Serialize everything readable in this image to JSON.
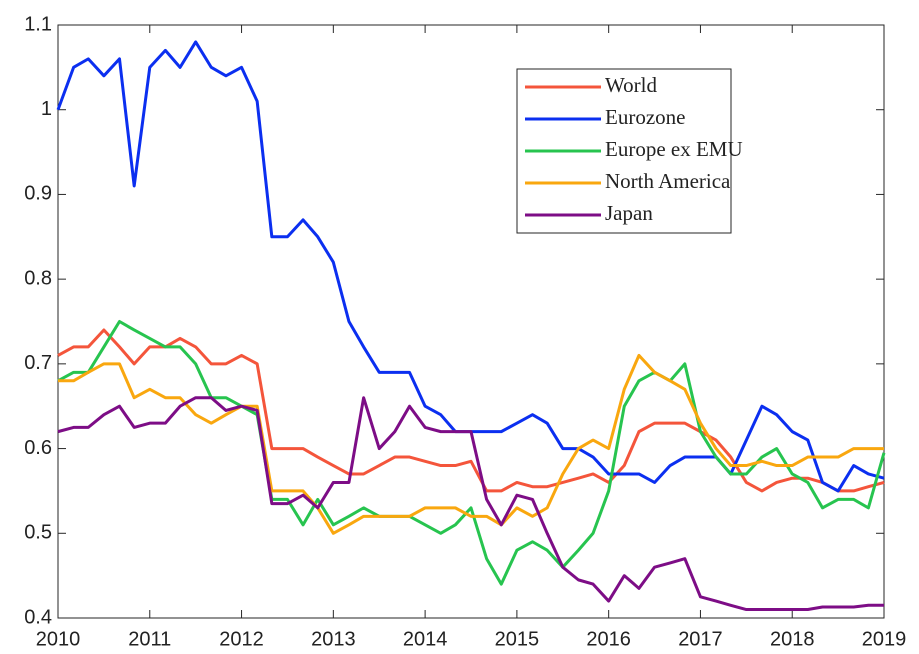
{
  "chart_data": {
    "type": "line",
    "x": [
      2010,
      2010.17,
      2010.33,
      2010.5,
      2010.67,
      2010.83,
      2011,
      2011.17,
      2011.33,
      2011.5,
      2011.67,
      2011.83,
      2012,
      2012.17,
      2012.33,
      2012.5,
      2012.67,
      2012.83,
      2013,
      2013.17,
      2013.33,
      2013.5,
      2013.67,
      2013.83,
      2014,
      2014.17,
      2014.33,
      2014.5,
      2014.67,
      2014.83,
      2015,
      2015.17,
      2015.33,
      2015.5,
      2015.67,
      2015.83,
      2016,
      2016.17,
      2016.33,
      2016.5,
      2016.67,
      2016.83,
      2017,
      2017.17,
      2017.33,
      2017.5,
      2017.67,
      2017.83,
      2018,
      2018.17,
      2018.33,
      2018.5,
      2018.67,
      2018.83,
      2019
    ],
    "series": [
      {
        "name": "World",
        "color": "#f4553b",
        "values": [
          0.71,
          0.72,
          0.72,
          0.74,
          0.72,
          0.7,
          0.72,
          0.72,
          0.73,
          0.72,
          0.7,
          0.7,
          0.71,
          0.7,
          0.6,
          0.6,
          0.6,
          0.59,
          0.58,
          0.57,
          0.57,
          0.58,
          0.59,
          0.59,
          0.585,
          0.58,
          0.58,
          0.585,
          0.55,
          0.55,
          0.56,
          0.555,
          0.555,
          0.56,
          0.565,
          0.57,
          0.56,
          0.58,
          0.62,
          0.63,
          0.63,
          0.63,
          0.62,
          0.61,
          0.59,
          0.56,
          0.55,
          0.56,
          0.565,
          0.565,
          0.56,
          0.55,
          0.55,
          0.555,
          0.56
        ]
      },
      {
        "name": "Eurozone",
        "color": "#0b2ff0",
        "values": [
          1.0,
          1.05,
          1.06,
          1.04,
          1.06,
          0.91,
          1.05,
          1.07,
          1.05,
          1.08,
          1.05,
          1.04,
          1.05,
          1.01,
          0.85,
          0.85,
          0.87,
          0.85,
          0.82,
          0.75,
          0.72,
          0.69,
          0.69,
          0.69,
          0.65,
          0.64,
          0.62,
          0.62,
          0.62,
          0.62,
          0.63,
          0.64,
          0.63,
          0.6,
          0.6,
          0.59,
          0.57,
          0.57,
          0.57,
          0.56,
          0.58,
          0.59,
          0.59,
          0.59,
          0.57,
          0.61,
          0.65,
          0.64,
          0.62,
          0.61,
          0.56,
          0.55,
          0.58,
          0.57,
          0.565
        ]
      },
      {
        "name": "Europe ex EMU",
        "color": "#27c44f",
        "values": [
          0.68,
          0.69,
          0.69,
          0.72,
          0.75,
          0.74,
          0.73,
          0.72,
          0.72,
          0.7,
          0.66,
          0.66,
          0.65,
          0.64,
          0.54,
          0.54,
          0.51,
          0.54,
          0.51,
          0.52,
          0.53,
          0.52,
          0.52,
          0.52,
          0.51,
          0.5,
          0.51,
          0.53,
          0.47,
          0.44,
          0.48,
          0.49,
          0.48,
          0.46,
          0.48,
          0.5,
          0.55,
          0.65,
          0.68,
          0.69,
          0.68,
          0.7,
          0.62,
          0.59,
          0.57,
          0.57,
          0.59,
          0.6,
          0.57,
          0.56,
          0.53,
          0.54,
          0.54,
          0.53,
          0.595
        ]
      },
      {
        "name": "North America",
        "color": "#f9a70f",
        "values": [
          0.68,
          0.68,
          0.69,
          0.7,
          0.7,
          0.66,
          0.67,
          0.66,
          0.66,
          0.64,
          0.63,
          0.64,
          0.65,
          0.65,
          0.55,
          0.55,
          0.55,
          0.53,
          0.5,
          0.51,
          0.52,
          0.52,
          0.52,
          0.52,
          0.53,
          0.53,
          0.53,
          0.52,
          0.52,
          0.51,
          0.53,
          0.52,
          0.53,
          0.57,
          0.6,
          0.61,
          0.6,
          0.67,
          0.71,
          0.69,
          0.68,
          0.67,
          0.63,
          0.6,
          0.58,
          0.58,
          0.585,
          0.58,
          0.58,
          0.59,
          0.59,
          0.59,
          0.6,
          0.6,
          0.6
        ]
      },
      {
        "name": "Japan",
        "color": "#7d0d86",
        "values": [
          0.62,
          0.625,
          0.625,
          0.64,
          0.65,
          0.625,
          0.63,
          0.63,
          0.65,
          0.66,
          0.66,
          0.645,
          0.65,
          0.645,
          0.535,
          0.535,
          0.545,
          0.53,
          0.56,
          0.56,
          0.66,
          0.6,
          0.62,
          0.65,
          0.625,
          0.62,
          0.62,
          0.62,
          0.54,
          0.51,
          0.545,
          0.54,
          0.5,
          0.46,
          0.445,
          0.44,
          0.42,
          0.45,
          0.435,
          0.46,
          0.465,
          0.47,
          0.425,
          0.42,
          0.415,
          0.41,
          0.41,
          0.41,
          0.41,
          0.41,
          0.413,
          0.413,
          0.413,
          0.415,
          0.415
        ]
      }
    ],
    "xlim": [
      2010,
      2019
    ],
    "xticks": [
      2010,
      2011,
      2012,
      2013,
      2014,
      2015,
      2016,
      2017,
      2018,
      2019
    ],
    "ylim": [
      0.4,
      1.1
    ],
    "yticks": [
      0.4,
      0.5,
      0.6,
      0.7,
      0.8,
      0.9,
      1,
      1.1
    ],
    "legend": "upper-right"
  }
}
